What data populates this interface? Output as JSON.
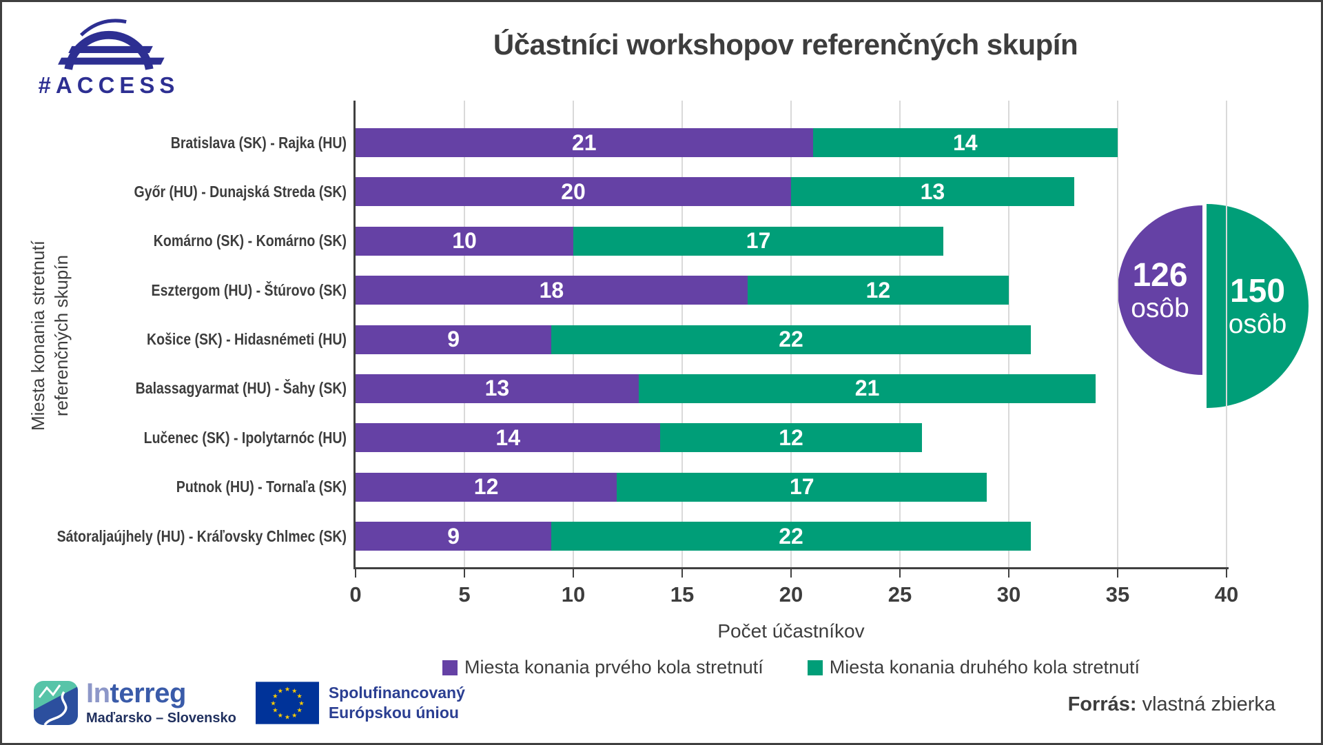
{
  "header": {
    "logo_text": "#ACCESS",
    "title": "Účastníci workshopov referenčných skupín"
  },
  "colors": {
    "purple": "#6541a5",
    "green": "#009e78",
    "axis": "#404040",
    "grid": "#d9d9d9",
    "text_dark": "#3d3d3d",
    "access_navy": "#2d2f92",
    "interreg_light_blue": "#8d97c8",
    "interreg_blue": "#3a5ba9",
    "interreg_dark": "#21315f",
    "eu_blue": "#003399",
    "eu_star_yellow": "#ffcc00"
  },
  "chart_data": {
    "type": "bar",
    "orientation": "horizontal",
    "stacked": true,
    "title": "Účastníci workshopov referenčných skupín",
    "categories": [
      "Bratislava (SK) - Rajka (HU)",
      "Győr (HU) - Dunajská Streda (SK)",
      "Komárno (SK) - Komárno (SK)",
      "Esztergom (HU) - Štúrovo (SK)",
      "Košice (SK) - Hidasnémeti (HU)",
      "Balassagyarmat (HU) - Šahy (SK)",
      "Lučenec (SK) - Ipolytarnóc (HU)",
      "Putnok (HU) - Tornaľa (SK)",
      "Sátoraljaújhely (HU) - Kráľovsky Chlmec (SK)"
    ],
    "series": [
      {
        "name": "Miesta konania prvého kola stretnutí",
        "color": "#6541a5",
        "values": [
          21,
          20,
          10,
          18,
          9,
          13,
          14,
          12,
          9
        ]
      },
      {
        "name": "Miesta konania druhého kola stretnutí",
        "color": "#009e78",
        "values": [
          14,
          13,
          17,
          12,
          22,
          21,
          12,
          17,
          22
        ]
      }
    ],
    "xlabel": "Počet účastníkov",
    "ylabel": "Miesta konania stretnutí referenčných skupín",
    "ylabel_lines": [
      "Miesta konania stretnutí",
      "referenčných skupín"
    ],
    "xlim": [
      0,
      40
    ],
    "xticks": [
      0,
      5,
      10,
      15,
      20,
      25,
      30,
      35,
      40
    ],
    "grid": "vertical",
    "legend_position": "bottom",
    "totals": [
      {
        "value": "126",
        "unit": "osôb",
        "color": "#6541a5",
        "side": "left"
      },
      {
        "value": "150",
        "unit": "osôb",
        "color": "#009e78",
        "side": "right"
      }
    ]
  },
  "footer": {
    "interreg": {
      "brand_prefix": "In",
      "brand_suffix": "terreg",
      "subtitle": "Maďarsko – Slovensko"
    },
    "eu": {
      "line1": "Spolufinancovaný",
      "line2": "Európskou úniou"
    },
    "source_label": "Forrás:",
    "source_value": "vlastná zbierka"
  }
}
